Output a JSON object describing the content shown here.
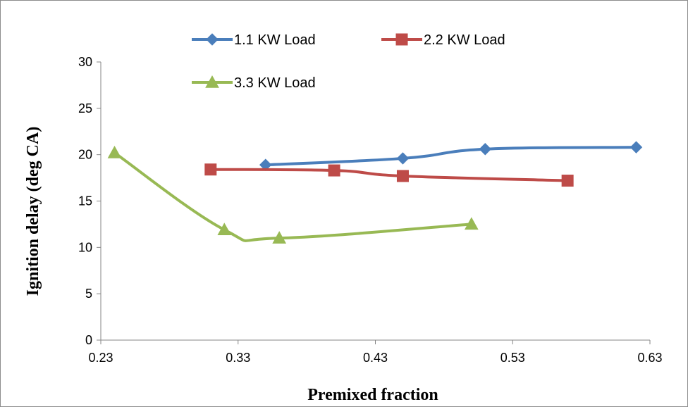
{
  "chart_data": {
    "type": "line",
    "title": "",
    "xlabel": "Premixed fraction",
    "ylabel": "Ignition delay (deg CA)",
    "xlim": [
      0.23,
      0.63
    ],
    "ylim": [
      0,
      30
    ],
    "x_ticks": [
      "0.23",
      "0.33",
      "0.43",
      "0.53",
      "0.63"
    ],
    "y_ticks": [
      "0",
      "5",
      "10",
      "15",
      "20",
      "25",
      "30"
    ],
    "grid": false,
    "legend_position": "top",
    "series": [
      {
        "name": "1.1 KW Load",
        "color": "#4a7ebb",
        "marker": "diamond",
        "x": [
          0.35,
          0.45,
          0.51,
          0.62
        ],
        "y": [
          18.9,
          19.6,
          20.6,
          20.8
        ]
      },
      {
        "name": "2.2 KW Load",
        "color": "#be4b48",
        "marker": "square",
        "x": [
          0.31,
          0.4,
          0.45,
          0.57
        ],
        "y": [
          18.4,
          18.3,
          17.7,
          17.2
        ]
      },
      {
        "name": "3.3 KW Load",
        "color": "#98b954",
        "marker": "triangle",
        "x": [
          0.24,
          0.32,
          0.36,
          0.5
        ],
        "y": [
          20.2,
          11.9,
          11.0,
          12.5
        ]
      }
    ]
  }
}
